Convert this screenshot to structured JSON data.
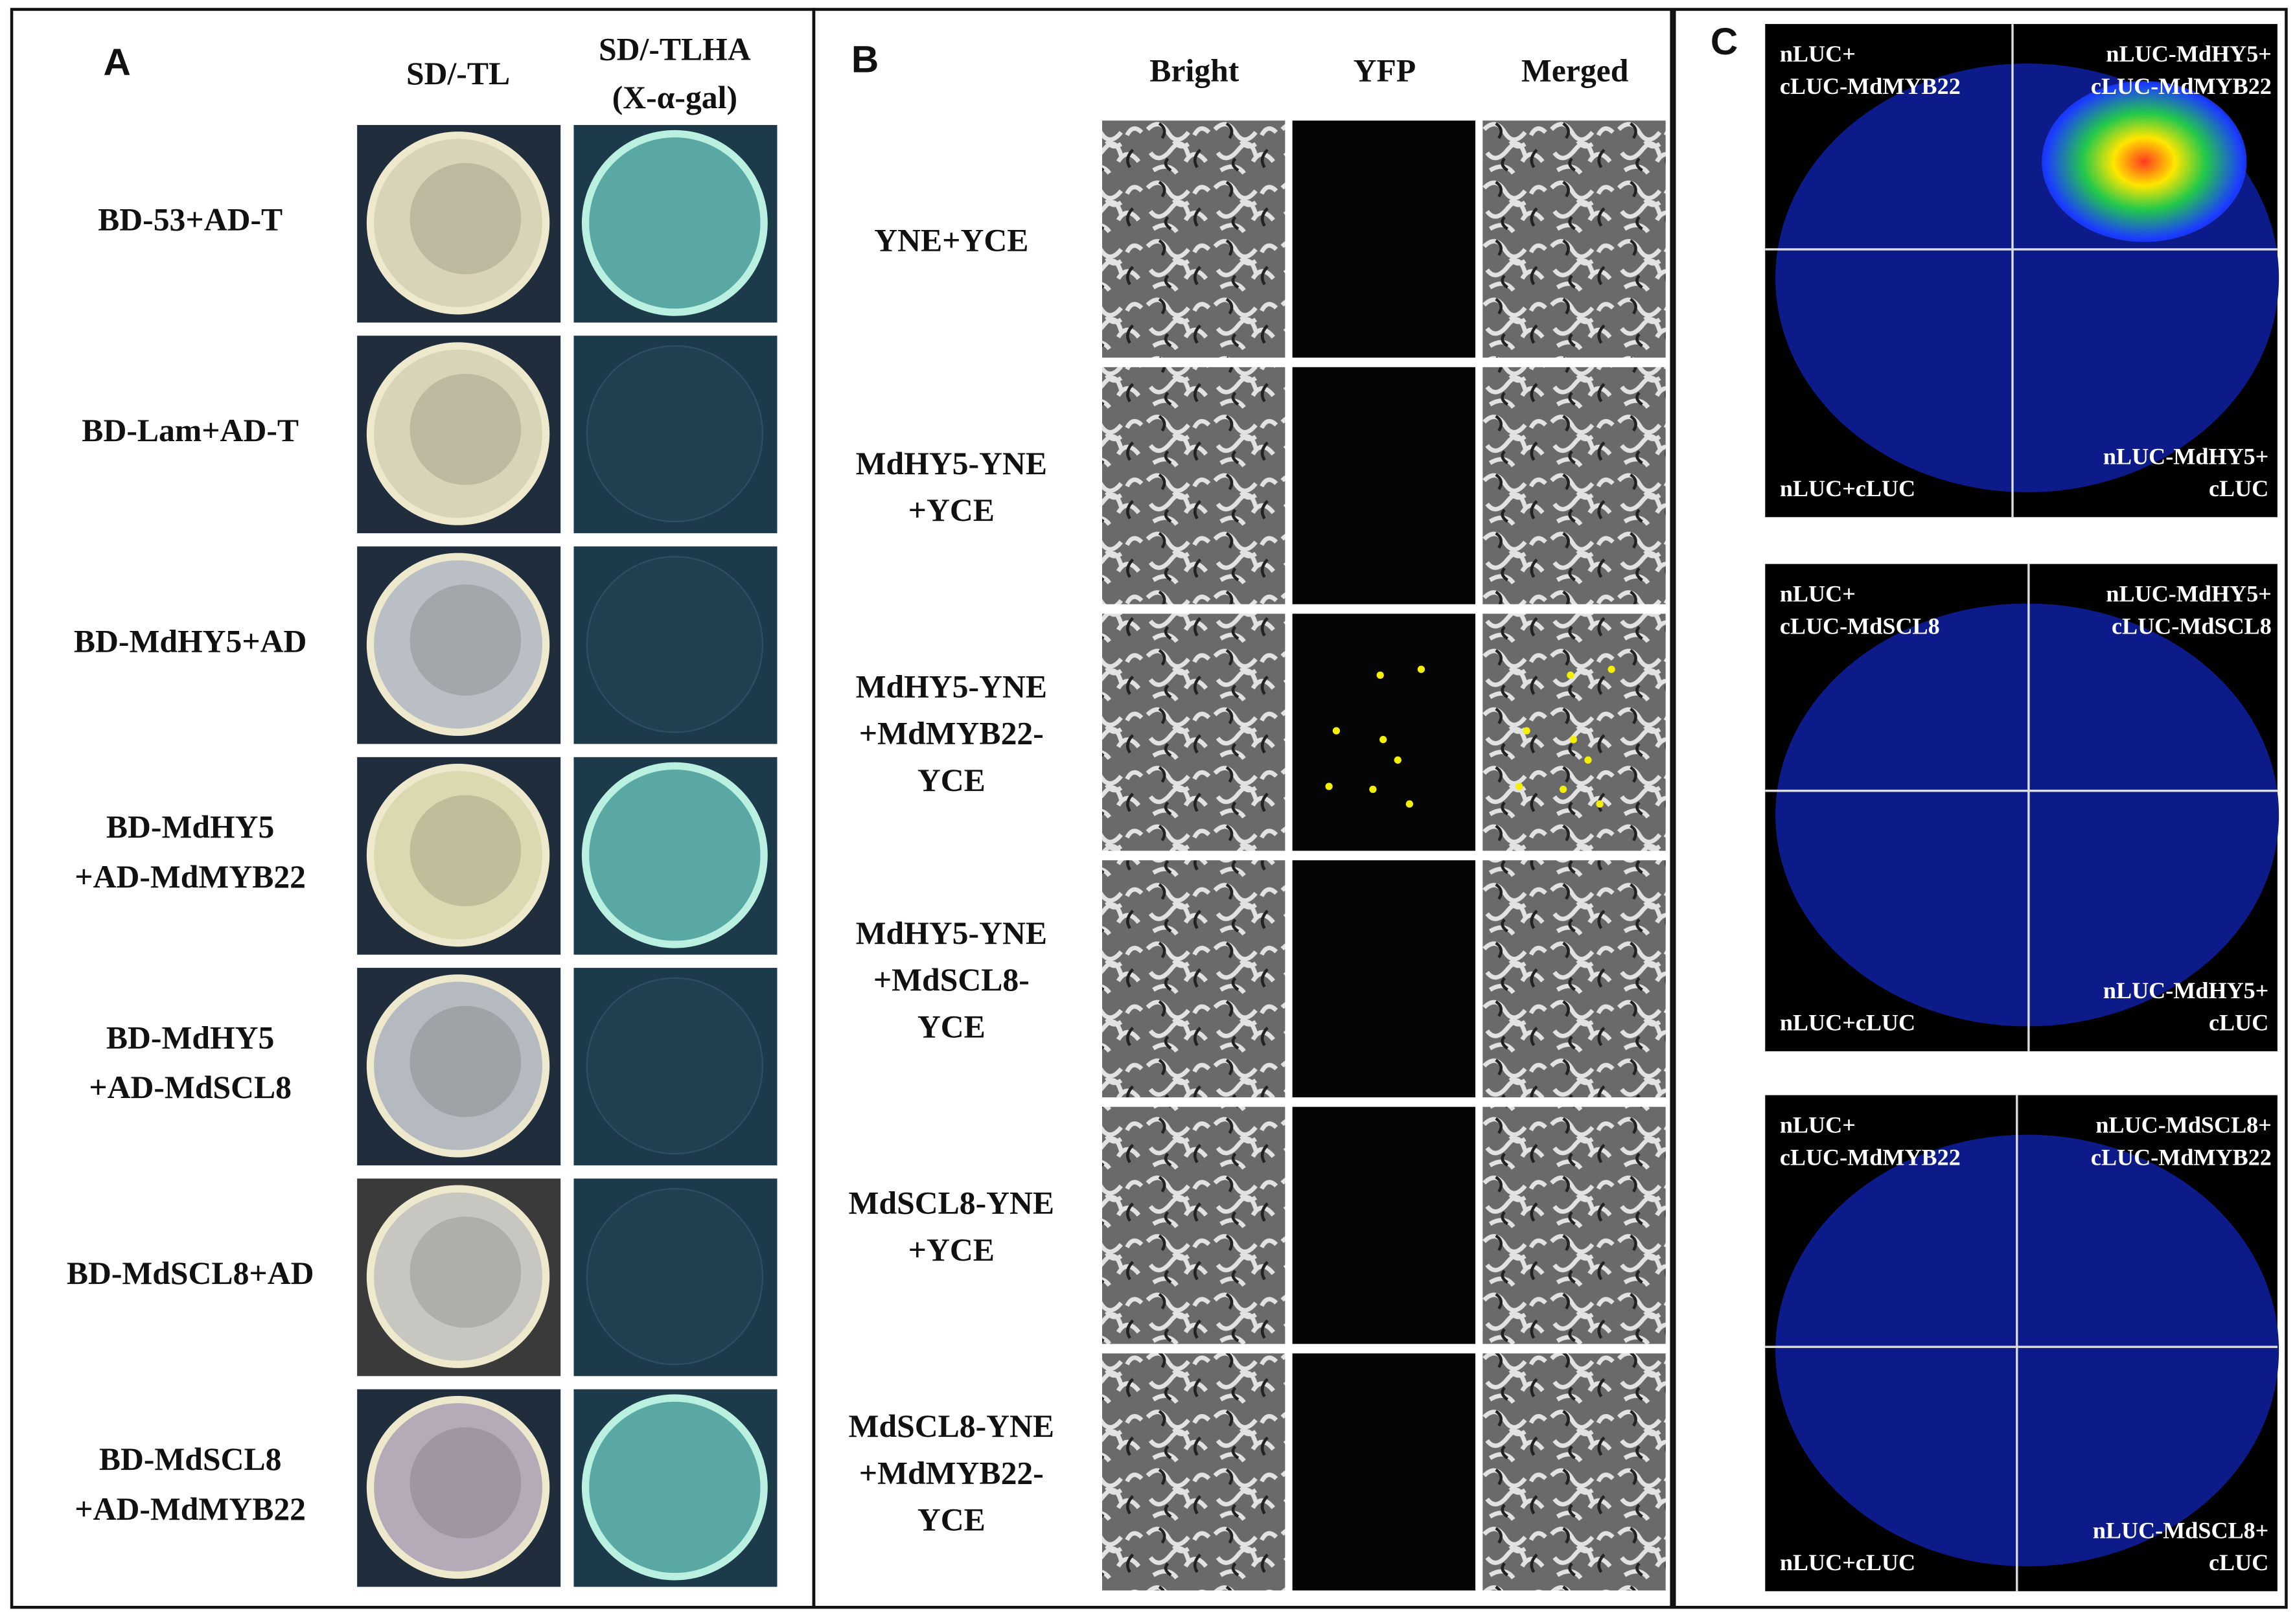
{
  "panel_a": {
    "label": "A",
    "columns": [
      [
        "SD/-TL"
      ],
      [
        "SD/-TLHA",
        "(X-α-gal)"
      ]
    ],
    "rows": [
      [
        "BD-53+AD-T"
      ],
      [
        "BD-Lam+AD-T"
      ],
      [
        "BD-MdHY5+AD"
      ],
      [
        "BD-MdHY5",
        "+AD-MdMYB22"
      ],
      [
        "BD-MdHY5",
        "+AD-MdSCL8"
      ],
      [
        "BD-MdSCL8+AD"
      ],
      [
        "BD-MdSCL8",
        "+AD-MdMYB22"
      ]
    ]
  },
  "panel_b": {
    "label": "B",
    "columns": [
      "Bright",
      "YFP",
      "Merged"
    ],
    "rows": [
      [
        "YNE+YCE"
      ],
      [
        "MdHY5-YNE",
        "+YCE"
      ],
      [
        "MdHY5-YNE",
        "+MdMYB22-",
        "YCE"
      ],
      [
        "MdHY5-YNE",
        "+MdSCL8-",
        "YCE"
      ],
      [
        "MdSCL8-YNE",
        "+YCE"
      ],
      [
        "MdSCL8-YNE",
        "+MdMYB22-",
        "YCE"
      ]
    ]
  },
  "panel_c": {
    "label": "C",
    "images": [
      {
        "top_left": [
          "nLUC+",
          "cLUC-MdMYB22"
        ],
        "top_right": [
          "nLUC-MdHY5+",
          "cLUC-MdMYB22"
        ],
        "bottom_left": [
          "nLUC+cLUC"
        ],
        "bottom_right": [
          "nLUC-MdHY5+",
          "cLUC"
        ]
      },
      {
        "top_left": [
          "nLUC+",
          "cLUC-MdSCL8"
        ],
        "top_right": [
          "nLUC-MdHY5+",
          "cLUC-MdSCL8"
        ],
        "bottom_left": [
          "nLUC+cLUC"
        ],
        "bottom_right": [
          "nLUC-MdHY5+",
          "cLUC"
        ]
      },
      {
        "top_left": [
          "nLUC+",
          "cLUC-MdMYB22"
        ],
        "top_right": [
          "nLUC-MdSCL8+",
          "cLUC-MdMYB22"
        ],
        "bottom_left": [
          "nLUC+cLUC"
        ],
        "bottom_right": [
          "nLUC-MdSCL8+",
          "cLUC"
        ]
      }
    ]
  }
}
